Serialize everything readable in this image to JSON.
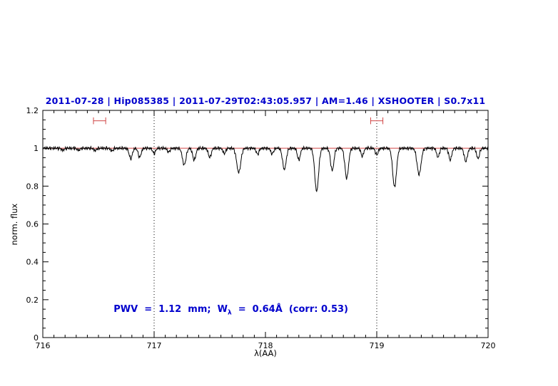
{
  "chart_data": {
    "type": "line",
    "title": "2011-07-28 | Hip085385 | 2011-07-29T02:43:05.957 | AM=1.46 | XSHOOTER | S0.7x11",
    "xlabel": "λ(AA)",
    "ylabel": "norm. flux",
    "xlim": [
      716,
      720
    ],
    "ylim": [
      0,
      1.2
    ],
    "x_ticks": [
      716,
      717,
      718,
      719,
      720
    ],
    "y_ticks": [
      0,
      0.2,
      0.4,
      0.6,
      0.8,
      1,
      1.2
    ],
    "x_minor_step": 0.1,
    "y_minor_step": 0.05,
    "grid": false,
    "legend": "none",
    "dotted_vlines": [
      717,
      719
    ],
    "continuum_line_y": 1.0,
    "range_markers": [
      {
        "center": 716.51,
        "half_width": 0.055,
        "y": 1.145,
        "cap_half_height": 0.018
      },
      {
        "center": 719.0,
        "half_width": 0.055,
        "y": 1.145,
        "cap_half_height": 0.018
      }
    ],
    "colors": {
      "spectrum": "#000000",
      "continuum": "#d04545",
      "marker": "#d04545",
      "axis": "#000000",
      "text_blue": "#0000cd"
    },
    "annotation": {
      "prefix": "PWV  =  1.12  mm;  W",
      "sub": "λ",
      "suffix": "  =  0.64Å  (corr: 0.53)",
      "x": 716.52,
      "y": 0.2
    },
    "spectrum": {
      "baseline": 1.0,
      "sample_step": 0.004,
      "noise_amplitude": 0.005,
      "absorption_line_format": [
        "center_AA",
        "depth",
        "sigma_AA"
      ],
      "absorption_lines": [
        [
          716.18,
          0.01,
          0.012
        ],
        [
          716.32,
          0.012,
          0.012
        ],
        [
          716.47,
          0.012,
          0.012
        ],
        [
          716.62,
          0.015,
          0.012
        ],
        [
          716.79,
          0.055,
          0.014
        ],
        [
          716.87,
          0.048,
          0.013
        ],
        [
          717.0,
          0.028,
          0.012
        ],
        [
          717.13,
          0.02,
          0.012
        ],
        [
          717.27,
          0.088,
          0.016
        ],
        [
          717.36,
          0.062,
          0.014
        ],
        [
          717.5,
          0.048,
          0.013
        ],
        [
          717.63,
          0.028,
          0.012
        ],
        [
          717.76,
          0.128,
          0.018
        ],
        [
          717.93,
          0.032,
          0.012
        ],
        [
          718.06,
          0.03,
          0.012
        ],
        [
          718.17,
          0.112,
          0.016
        ],
        [
          718.3,
          0.062,
          0.013
        ],
        [
          718.46,
          0.228,
          0.017
        ],
        [
          718.6,
          0.118,
          0.015
        ],
        [
          718.73,
          0.158,
          0.016
        ],
        [
          718.87,
          0.042,
          0.012
        ],
        [
          719.0,
          0.035,
          0.012
        ],
        [
          719.16,
          0.205,
          0.017
        ],
        [
          719.38,
          0.138,
          0.018
        ],
        [
          719.55,
          0.048,
          0.012
        ],
        [
          719.66,
          0.062,
          0.013
        ],
        [
          719.8,
          0.07,
          0.014
        ],
        [
          719.91,
          0.055,
          0.013
        ]
      ]
    }
  }
}
